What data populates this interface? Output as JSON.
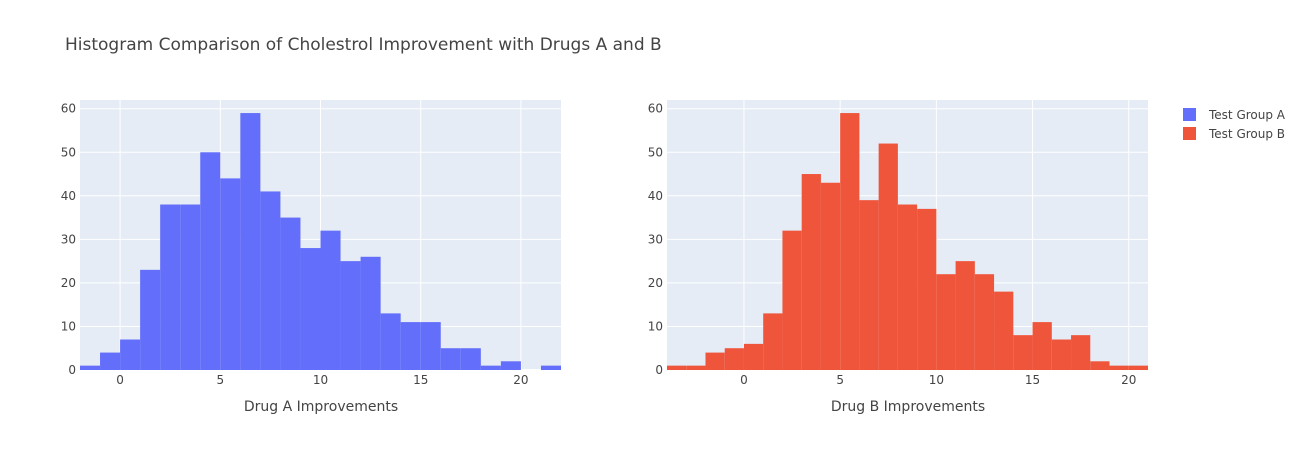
{
  "chart_data": [
    {
      "type": "bar",
      "title": "Histogram Comparison of Cholestrol Improvement with Drugs A and B",
      "xlabel": "Drug A Improvements",
      "ylabel": "",
      "xlim": [
        -2,
        22
      ],
      "ylim": [
        0,
        62
      ],
      "xticks": [
        0,
        5,
        10,
        15,
        20
      ],
      "yticks": [
        0,
        10,
        20,
        30,
        40,
        50,
        60
      ],
      "bin_size": 1,
      "bin_starts": [
        -2,
        -1,
        0,
        1,
        2,
        3,
        4,
        5,
        6,
        7,
        8,
        9,
        10,
        11,
        12,
        13,
        14,
        15,
        16,
        17,
        18,
        19,
        20,
        21
      ],
      "series": [
        {
          "name": "Test Group A",
          "color": "#636EFA",
          "values": [
            1,
            4,
            7,
            23,
            38,
            38,
            50,
            44,
            59,
            41,
            35,
            28,
            32,
            25,
            26,
            13,
            11,
            11,
            5,
            5,
            1,
            2,
            0,
            1
          ]
        }
      ],
      "grid": true
    },
    {
      "type": "bar",
      "xlabel": "Drug B Improvements",
      "ylabel": "",
      "xlim": [
        -4,
        21
      ],
      "ylim": [
        0,
        62
      ],
      "xticks": [
        0,
        5,
        10,
        15,
        20
      ],
      "yticks": [
        0,
        10,
        20,
        30,
        40,
        50,
        60
      ],
      "bin_size": 1,
      "bin_starts": [
        -4,
        -3,
        -2,
        -1,
        0,
        1,
        2,
        3,
        4,
        5,
        6,
        7,
        8,
        9,
        10,
        11,
        12,
        13,
        14,
        15,
        16,
        17,
        18,
        19,
        20
      ],
      "series": [
        {
          "name": "Test Group B",
          "color": "#EF553B",
          "values": [
            1,
            1,
            4,
            5,
            6,
            13,
            32,
            45,
            43,
            59,
            39,
            52,
            38,
            37,
            22,
            25,
            22,
            18,
            8,
            11,
            7,
            8,
            2,
            1,
            1
          ]
        }
      ],
      "grid": true
    }
  ],
  "legend": {
    "placement": "top-right",
    "items": [
      {
        "label": "Test Group A",
        "color": "#636EFA"
      },
      {
        "label": "Test Group B",
        "color": "#EF553B"
      }
    ]
  },
  "colors": {
    "plot_background": "#E5ECF6",
    "grid": "#FFFFFF",
    "text": "#444444"
  }
}
